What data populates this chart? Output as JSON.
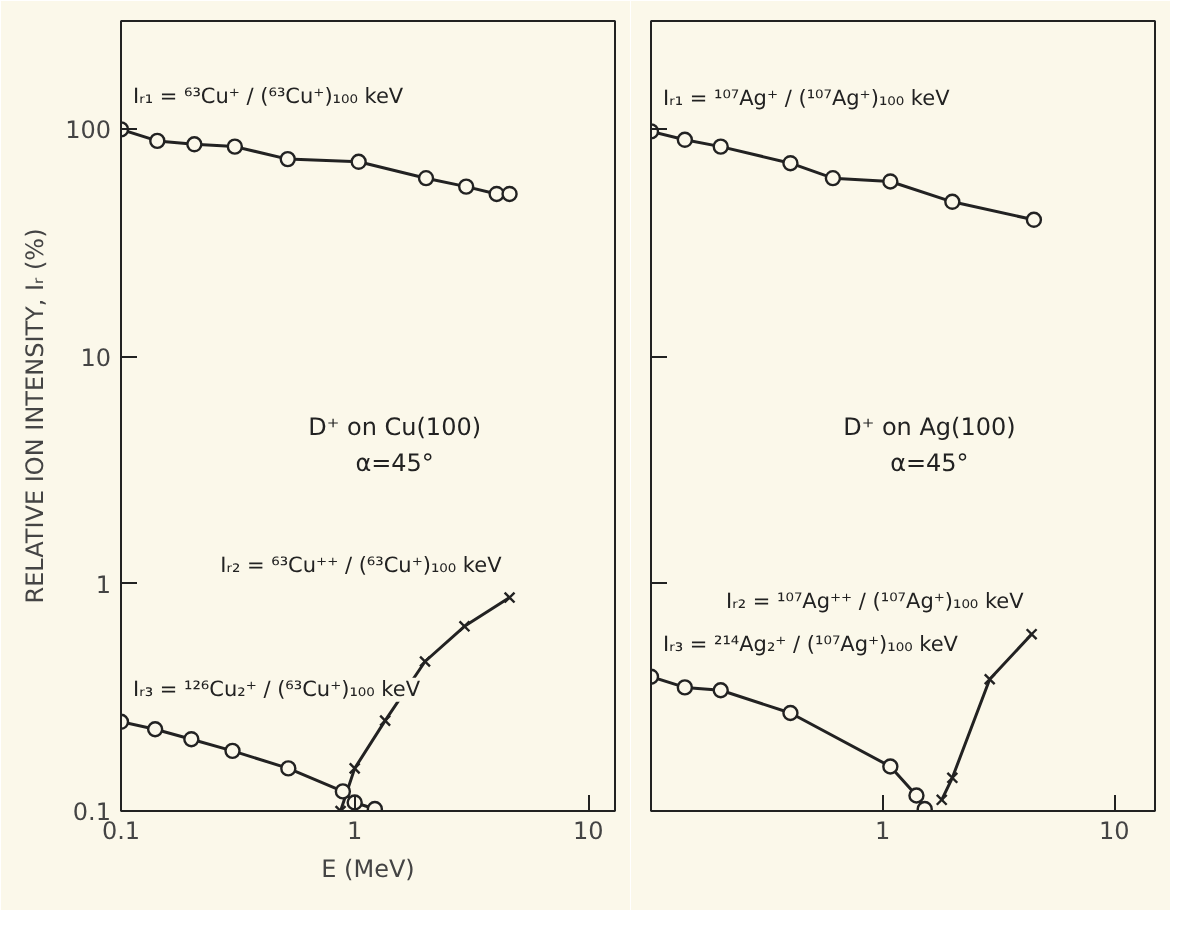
{
  "chart_data": [
    {
      "type": "line",
      "xlabel": "E (MeV)",
      "ylabel": "RELATIVE ION INTENSITY, Iᵣ (%)",
      "log": "xy",
      "grid": false,
      "legend": false,
      "line_style": "solid",
      "xlim": [
        0.1,
        13
      ],
      "xticks": [
        0.1,
        1,
        10
      ],
      "ylim": [
        0.1,
        300
      ],
      "yticks": [
        0.1,
        1,
        10,
        100
      ],
      "annotations": [
        "D⁺ on Cu(100)",
        "α=45°"
      ],
      "series": [
        {
          "name": "Iᵣ₁ = ⁶³Cu⁺ / (⁶³Cu⁺)₁₀₀ keV",
          "color": "#222222",
          "marker": "circle",
          "x": [
            0.1,
            0.143,
            0.206,
            0.307,
            0.517,
            1.04,
            2.02,
            3.0,
            4.05,
            4.6
          ],
          "values": [
            100,
            89,
            86,
            84,
            74,
            72,
            61,
            56,
            52,
            52
          ]
        },
        {
          "name": "Iᵣ₂ = ⁶³Cu⁺⁺ / (⁶³Cu⁺)₁₀₀ keV",
          "color": "#222222",
          "marker": "cross",
          "x": [
            0.87,
            1.0,
            1.35,
            2.0,
            2.95,
            4.6
          ],
          "values": [
            0.1,
            0.154,
            0.25,
            0.455,
            0.65,
            0.87
          ]
        },
        {
          "name": "Iᵣ₃ = ¹²⁶Cu₂⁺ / (⁶³Cu⁺)₁₀₀ keV",
          "color": "#222222",
          "marker": "circle",
          "x": [
            0.1,
            0.14,
            0.2,
            0.3,
            0.52,
            0.89,
            1.0,
            1.22
          ],
          "values": [
            0.247,
            0.229,
            0.207,
            0.184,
            0.154,
            0.122,
            0.109,
            0.102
          ]
        }
      ]
    },
    {
      "type": "line",
      "log": "xy",
      "grid": false,
      "legend": false,
      "line_style": "solid",
      "tick_labels": "x",
      "xlim": [
        0.1,
        15
      ],
      "xticks": [
        1,
        10
      ],
      "ylim": [
        0.1,
        300
      ],
      "yticks": [
        0.1,
        1,
        10,
        100
      ],
      "annotations": [
        "D⁺ on Ag(100)",
        "α=45°"
      ],
      "series": [
        {
          "name": "Iᵣ₁ = ¹⁰⁷Ag⁺ / (¹⁰⁷Ag⁺)₁₀₀ keV",
          "color": "#222222",
          "marker": "circle",
          "x": [
            0.1,
            0.14,
            0.2,
            0.4,
            0.61,
            1.08,
            2.0,
            4.5
          ],
          "values": [
            98,
            90,
            84,
            71,
            61,
            59,
            48,
            40
          ]
        },
        {
          "name": "Iᵣ₂ = ¹⁰⁷Ag⁺⁺ / (¹⁰⁷Ag⁺)₁₀₀ keV",
          "color": "#222222",
          "marker": "cross",
          "x": [
            1.8,
            2.0,
            2.9,
            4.4
          ],
          "values": [
            0.112,
            0.14,
            0.38,
            0.6
          ]
        },
        {
          "name": "Iᵣ₃ = ²¹⁴Ag₂⁺ / (¹⁰⁷Ag⁺)₁₀₀ keV",
          "color": "#222222",
          "marker": "circle",
          "x": [
            0.1,
            0.14,
            0.2,
            0.4,
            1.08,
            1.4,
            1.52
          ],
          "values": [
            0.39,
            0.35,
            0.34,
            0.27,
            0.157,
            0.117,
            0.102
          ]
        }
      ]
    }
  ]
}
